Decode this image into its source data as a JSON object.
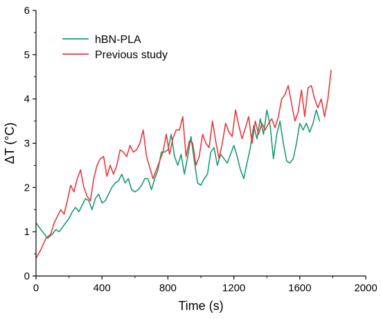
{
  "chart_data": {
    "type": "line",
    "title": "",
    "xlabel": "Time (s)",
    "ylabel": "ΔT (°C)",
    "xlim": [
      0,
      2000
    ],
    "ylim": [
      0,
      6
    ],
    "x_ticks": [
      0,
      400,
      800,
      1200,
      1600,
      2000
    ],
    "y_ticks": [
      0,
      1,
      2,
      3,
      4,
      5,
      6
    ],
    "grid": false,
    "legend_position": "top-left",
    "series": [
      {
        "name": "hBN-PLA",
        "color": "#1a9a6c",
        "x": [
          0,
          30,
          70,
          100,
          120,
          140,
          160,
          180,
          200,
          220,
          240,
          260,
          280,
          300,
          320,
          340,
          360,
          380,
          400,
          420,
          440,
          460,
          480,
          500,
          520,
          540,
          560,
          580,
          600,
          620,
          640,
          660,
          680,
          700,
          720,
          740,
          760,
          780,
          800,
          820,
          840,
          860,
          880,
          900,
          920,
          940,
          960,
          980,
          1000,
          1020,
          1040,
          1060,
          1080,
          1100,
          1120,
          1140,
          1160,
          1180,
          1200,
          1220,
          1240,
          1260,
          1280,
          1300,
          1320,
          1340,
          1360,
          1380,
          1400,
          1420,
          1440,
          1460,
          1480,
          1500,
          1520,
          1540,
          1560,
          1580,
          1600,
          1620,
          1640,
          1660,
          1680,
          1700,
          1720
        ],
        "y": [
          1.2,
          1.05,
          0.85,
          0.95,
          1.05,
          1.0,
          1.1,
          1.2,
          1.3,
          1.45,
          1.55,
          1.45,
          1.6,
          1.75,
          1.7,
          1.5,
          1.75,
          1.85,
          1.65,
          1.7,
          1.85,
          2.0,
          2.1,
          2.15,
          2.3,
          2.1,
          2.2,
          1.95,
          1.9,
          1.95,
          2.05,
          2.2,
          2.2,
          1.95,
          2.2,
          2.4,
          2.8,
          2.8,
          2.85,
          3.2,
          2.7,
          2.5,
          2.75,
          2.3,
          2.7,
          3.15,
          2.6,
          2.1,
          2.05,
          2.2,
          2.3,
          2.8,
          2.9,
          2.5,
          2.75,
          2.65,
          2.55,
          2.75,
          2.95,
          2.7,
          2.4,
          2.2,
          2.55,
          2.9,
          3.4,
          3.1,
          3.55,
          3.2,
          3.75,
          3.4,
          2.65,
          3.2,
          3.5,
          3.0,
          2.6,
          2.55,
          2.65,
          3.0,
          3.45,
          3.3,
          3.45,
          3.25,
          3.45,
          3.75,
          3.5
        ]
      },
      {
        "name": "Previous study",
        "color": "#e8383d",
        "x": [
          0,
          30,
          60,
          90,
          110,
          130,
          150,
          170,
          190,
          210,
          230,
          250,
          270,
          290,
          310,
          330,
          350,
          370,
          390,
          410,
          430,
          450,
          470,
          490,
          510,
          530,
          550,
          570,
          590,
          610,
          630,
          650,
          670,
          690,
          710,
          730,
          750,
          770,
          790,
          810,
          830,
          850,
          870,
          890,
          910,
          930,
          950,
          970,
          990,
          1010,
          1030,
          1050,
          1070,
          1090,
          1110,
          1130,
          1150,
          1170,
          1190,
          1210,
          1230,
          1250,
          1270,
          1290,
          1310,
          1330,
          1350,
          1370,
          1390,
          1410,
          1430,
          1450,
          1470,
          1490,
          1510,
          1530,
          1550,
          1570,
          1590,
          1610,
          1630,
          1650,
          1670,
          1690,
          1710,
          1730,
          1750,
          1770,
          1790
        ],
        "y": [
          0.4,
          0.6,
          0.85,
          0.95,
          1.2,
          1.35,
          1.5,
          1.4,
          1.7,
          2.05,
          1.9,
          2.2,
          2.4,
          2.0,
          1.8,
          1.7,
          2.2,
          2.5,
          2.65,
          2.7,
          2.25,
          2.5,
          2.3,
          2.5,
          2.85,
          2.8,
          2.7,
          2.95,
          2.8,
          2.85,
          3.0,
          3.3,
          2.7,
          2.45,
          2.2,
          2.4,
          2.6,
          2.8,
          3.2,
          2.75,
          3.1,
          3.3,
          3.3,
          3.6,
          2.7,
          3.05,
          3.0,
          2.5,
          2.7,
          3.2,
          3.0,
          2.9,
          3.5,
          3.05,
          2.65,
          3.0,
          3.45,
          3.25,
          3.15,
          3.75,
          3.4,
          3.1,
          3.35,
          3.6,
          3.0,
          3.5,
          3.2,
          3.45,
          3.3,
          3.45,
          3.55,
          3.35,
          3.6,
          4.0,
          4.1,
          4.3,
          3.9,
          3.5,
          3.7,
          4.2,
          3.6,
          4.25,
          4.3,
          4.0,
          3.8,
          4.0,
          3.6,
          4.0,
          4.65
        ]
      }
    ]
  }
}
